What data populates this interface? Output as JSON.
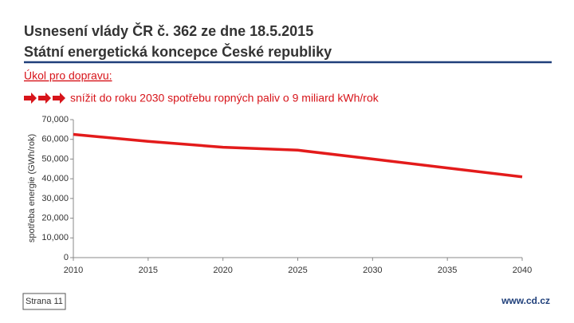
{
  "slide": {
    "title_lines": [
      "Usnesení vlády ČR č. 362 ze dne 18.5.2015",
      "Státní energetická koncepce České republiky"
    ],
    "task": "Úkol pro dopravu:",
    "goal": "snížit do roku 2030 spotřebu ropných paliv o 9 miliard kWh/rok",
    "page": "Strana 11",
    "website": "www.cd.cz"
  },
  "chart_data": {
    "type": "line",
    "y_label": "spotřeba energie (GWh/rok)",
    "x": [
      2010,
      2015,
      2020,
      2025,
      2030,
      2035,
      2040
    ],
    "series": [
      {
        "name": "spotřeba",
        "color": "#e31b1b",
        "values": [
          62500,
          59000,
          56000,
          54500,
          50000,
          45500,
          41000
        ]
      }
    ],
    "xlim": [
      2010,
      2040
    ],
    "xticks": [
      2010,
      2015,
      2020,
      2025,
      2030,
      2035,
      2040
    ],
    "ylim": [
      0,
      70000
    ],
    "yticks": [
      0,
      {
        "value": 10000,
        "label": "10,000"
      },
      {
        "value": 20000,
        "label": "20,000"
      },
      {
        "value": 30000,
        "label": "30,000"
      },
      {
        "value": 40000,
        "label": "40,000"
      },
      {
        "value": 50000,
        "label": "50,000"
      },
      {
        "value": 60000,
        "label": "60,000"
      },
      {
        "value": 70000,
        "label": "70,000"
      }
    ]
  }
}
